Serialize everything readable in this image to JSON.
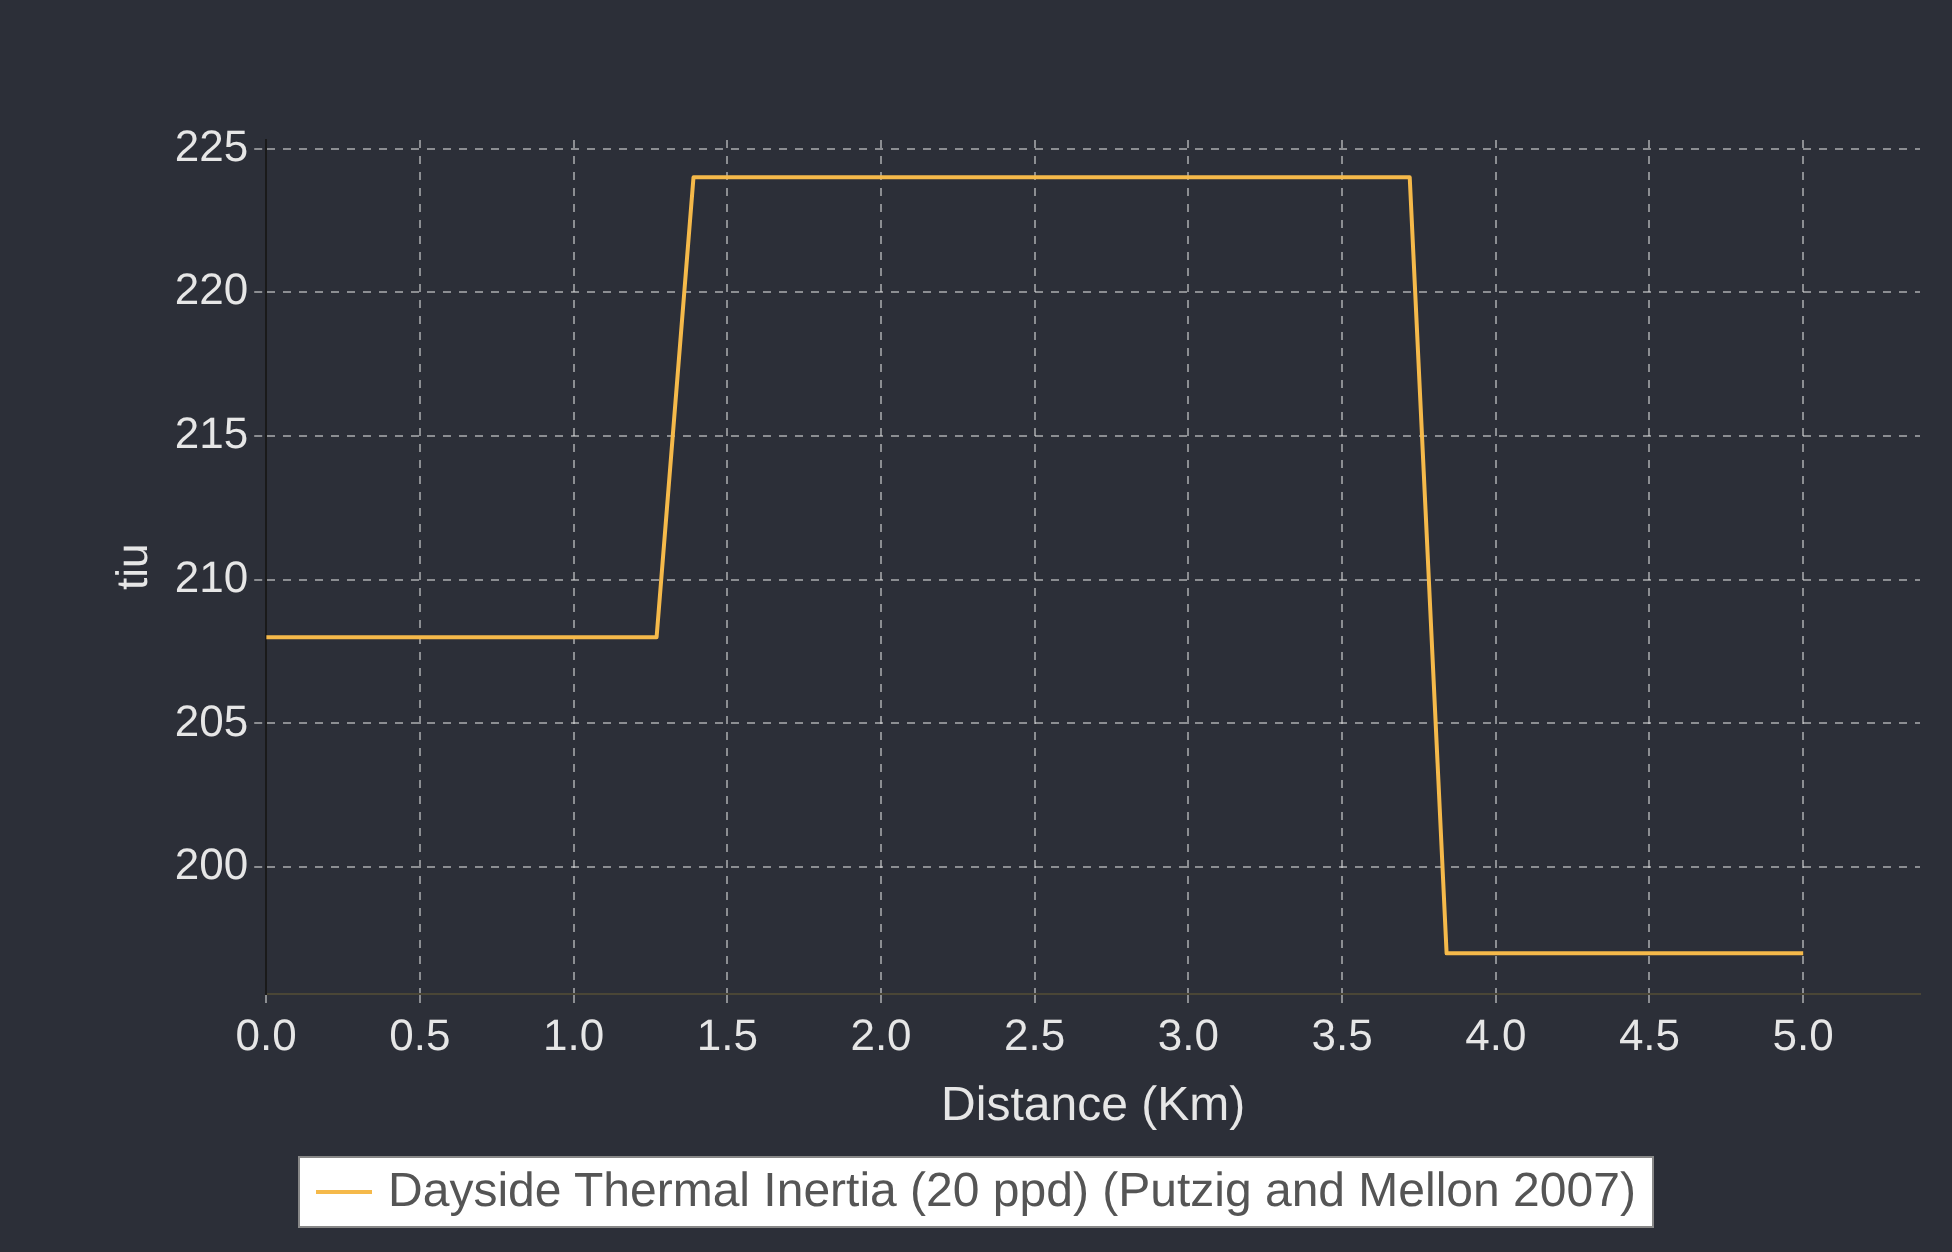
{
  "chart_data": {
    "type": "line",
    "xlabel": "Distance (Km)",
    "ylabel": "tiu",
    "x": [
      0,
      1.27,
      1.39,
      3.72,
      3.84,
      5.0
    ],
    "series": [
      {
        "name": "Dayside Thermal Inertia (20 ppd) (Putzig and Mellon 2007)",
        "color": "#f5b94a",
        "values": [
          208,
          208,
          224,
          224,
          197,
          197
        ]
      }
    ],
    "xlim": [
      0,
      5.38
    ],
    "xticks": [
      {
        "value": 0,
        "label": "0.0"
      },
      {
        "value": 0.5,
        "label": "0.5"
      },
      {
        "value": 1,
        "label": "1.0"
      },
      {
        "value": 1.5,
        "label": "1.5"
      },
      {
        "value": 2,
        "label": "2.0"
      },
      {
        "value": 2.5,
        "label": "2.5"
      },
      {
        "value": 3,
        "label": "3.0"
      },
      {
        "value": 3.5,
        "label": "3.5"
      },
      {
        "value": 4,
        "label": "4.0"
      },
      {
        "value": 4.5,
        "label": "4.5"
      },
      {
        "value": 5,
        "label": "5.0"
      }
    ],
    "ylim": [
      195.6,
      225.3
    ],
    "yticks": [
      200,
      205,
      210,
      215,
      220,
      225
    ],
    "grid": true,
    "legend": "bottom",
    "marker": "none",
    "line_style": "solid"
  }
}
